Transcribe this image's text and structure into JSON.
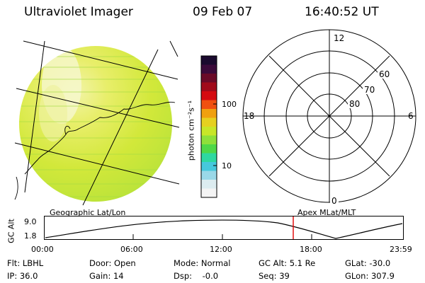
{
  "header": {
    "instrument": "Ultraviolet Imager",
    "date": "09 Feb 07",
    "time": "16:40:52 UT"
  },
  "colorbar": {
    "unit_label": "photon cm⁻²s⁻¹",
    "tick_upper": "100",
    "tick_lower": "10",
    "colors": [
      "#1a0a2e",
      "#3b0a3a",
      "#6a0a28",
      "#a00a1a",
      "#d40a10",
      "#f05010",
      "#f0a010",
      "#e6d020",
      "#c8e628",
      "#8ee03a",
      "#4ed848",
      "#2ed8a0",
      "#46c8dc",
      "#9ad8e8",
      "#dcecf0",
      "#f4f4f4"
    ]
  },
  "left_panel": {
    "label": "Geographic Lat/Lon"
  },
  "polar_plot": {
    "label": "Apex MLat/MLT",
    "mlt_labels": {
      "top": "12",
      "left": "18",
      "right": "6",
      "bottom": "0"
    },
    "mlat_labels": [
      "60",
      "70",
      "80"
    ]
  },
  "orbit_plot": {
    "ylabel": "GC Alt",
    "ytick_top": "9.0",
    "ytick_bottom": "1.8",
    "time_ticks": [
      "00:00",
      "06:00",
      "12:00",
      "18:00",
      "23:59"
    ],
    "current_time_color": "#e00000"
  },
  "status": {
    "filter": "Flt: LBHL",
    "ip": "IP: 36.0",
    "door": "Door: Open",
    "gain": "Gain: 14",
    "mode": "Mode: Normal",
    "dsp": "Dsp:    -0.0",
    "gc_alt": "GC Alt: 5.1 Re",
    "seq": "Seq: 39",
    "glat": "GLat: -30.0",
    "glon": "GLon: 307.9"
  }
}
